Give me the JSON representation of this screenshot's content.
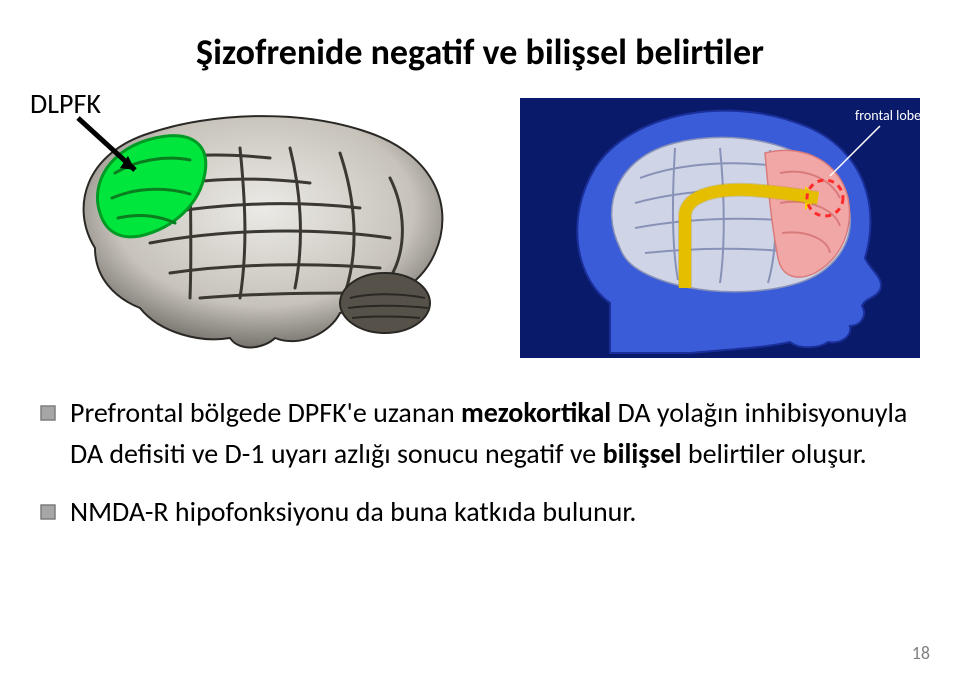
{
  "title": "Şizofrenide negatif ve bilişsel belirtiler",
  "dlpfk_label": "DLPFK",
  "right_image_label": "frontal lobe",
  "bullets": [
    {
      "parts": [
        {
          "text": "Prefrontal bölgede DPFK'e uzanan ",
          "bold": false
        },
        {
          "text": "mezokortikal ",
          "bold": true
        },
        {
          "text": "DA yolağın inhibisyonuyla DA defisiti ve D-1 uyarı azlığı sonucu negatif ve ",
          "bold": false
        },
        {
          "text": "bilişsel",
          "bold": true
        },
        {
          "text": " belirtiler oluşur.",
          "bold": false
        }
      ]
    },
    {
      "parts": [
        {
          "text": "NMDA-R hipofonksiyonu da buna katkıda bulunur.",
          "bold": false
        }
      ]
    }
  ],
  "page_number": "18",
  "colors": {
    "title_color": "#000000",
    "body_color": "#000000",
    "page_num_color": "#808080",
    "bullet_fill": "#a6a6a6",
    "bullet_stroke": "#7f7f7f",
    "dlpfk_region": "#00e63d",
    "arrow_dlpfk": "#000000",
    "right_bg": "#0a1a6a",
    "head_fill": "#3a5cd8",
    "brain_fill": "#cfd5e6",
    "frontal_lobe_fill": "#f2a7a7",
    "pathway_arrow": "#ffd400",
    "target_circle": "#ff2a2a",
    "label_text_white": "#ffffff"
  },
  "sizes": {
    "title_fontsize": 36,
    "body_fontsize": 28,
    "dlpfk_fontsize": 28,
    "page_num_fontsize": 18,
    "right_label_fontsize": 14
  }
}
